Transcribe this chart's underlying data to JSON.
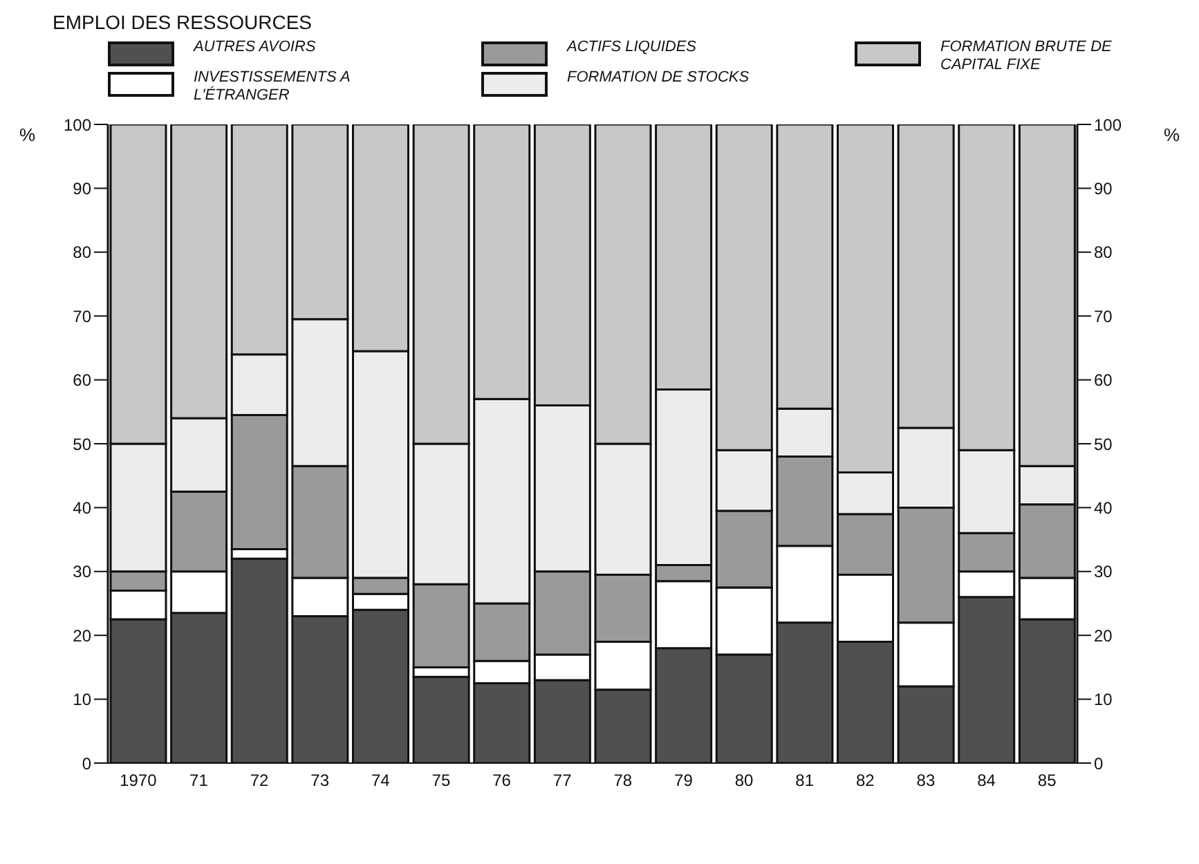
{
  "chart_data": {
    "type": "bar",
    "stacked": true,
    "title": "EMPLOI DES RESSOURCES",
    "ylabel": "%",
    "y2label": "%",
    "categories": [
      "1970",
      "71",
      "72",
      "73",
      "74",
      "75",
      "76",
      "77",
      "78",
      "79",
      "80",
      "81",
      "82",
      "83",
      "84",
      "85"
    ],
    "series": [
      {
        "name": "AUTRES AVOIRS",
        "color": "#505050",
        "values": [
          22.5,
          23.5,
          32,
          23,
          24,
          13.5,
          12.5,
          13,
          11.5,
          18,
          17,
          22,
          19,
          12,
          26,
          22.5
        ]
      },
      {
        "name": "INVESTISSEMENTS A L'ÉTRANGER",
        "color": "#ffffff",
        "values": [
          4.5,
          6.5,
          1.5,
          6,
          2.5,
          1.5,
          3.5,
          4,
          7.5,
          10.5,
          10.5,
          12,
          10.5,
          10,
          4,
          6.5
        ]
      },
      {
        "name": "ACTIFS LIQUIDES",
        "color": "#9a9a9a",
        "values": [
          3,
          12.5,
          21,
          17.5,
          2.5,
          13,
          9,
          13,
          10.5,
          2.5,
          12,
          14,
          9.5,
          18,
          6,
          11.5
        ]
      },
      {
        "name": "FORMATION DE STOCKS",
        "color": "#ececec",
        "values": [
          20,
          11.5,
          9.5,
          23,
          35.5,
          22,
          32,
          26,
          20.5,
          27.5,
          9.5,
          7.5,
          6.5,
          12.5,
          13,
          6
        ]
      },
      {
        "name": "FORMATION BRUTE DE CAPITAL FIXE",
        "color": "#c8c8c8",
        "values": [
          50,
          46,
          36,
          30.5,
          35.5,
          50,
          43,
          44,
          50,
          41.5,
          51,
          44.5,
          54.5,
          47.5,
          51,
          53.5
        ]
      }
    ],
    "ylim": [
      0,
      100
    ],
    "yticks": [
      0,
      10,
      20,
      30,
      40,
      50,
      60,
      70,
      80,
      90,
      100
    ],
    "y2lim": [
      0,
      100
    ],
    "y2ticks": [
      0,
      10,
      20,
      30,
      40,
      50,
      60,
      70,
      80,
      90,
      100
    ],
    "grid": false,
    "legend": "top"
  }
}
